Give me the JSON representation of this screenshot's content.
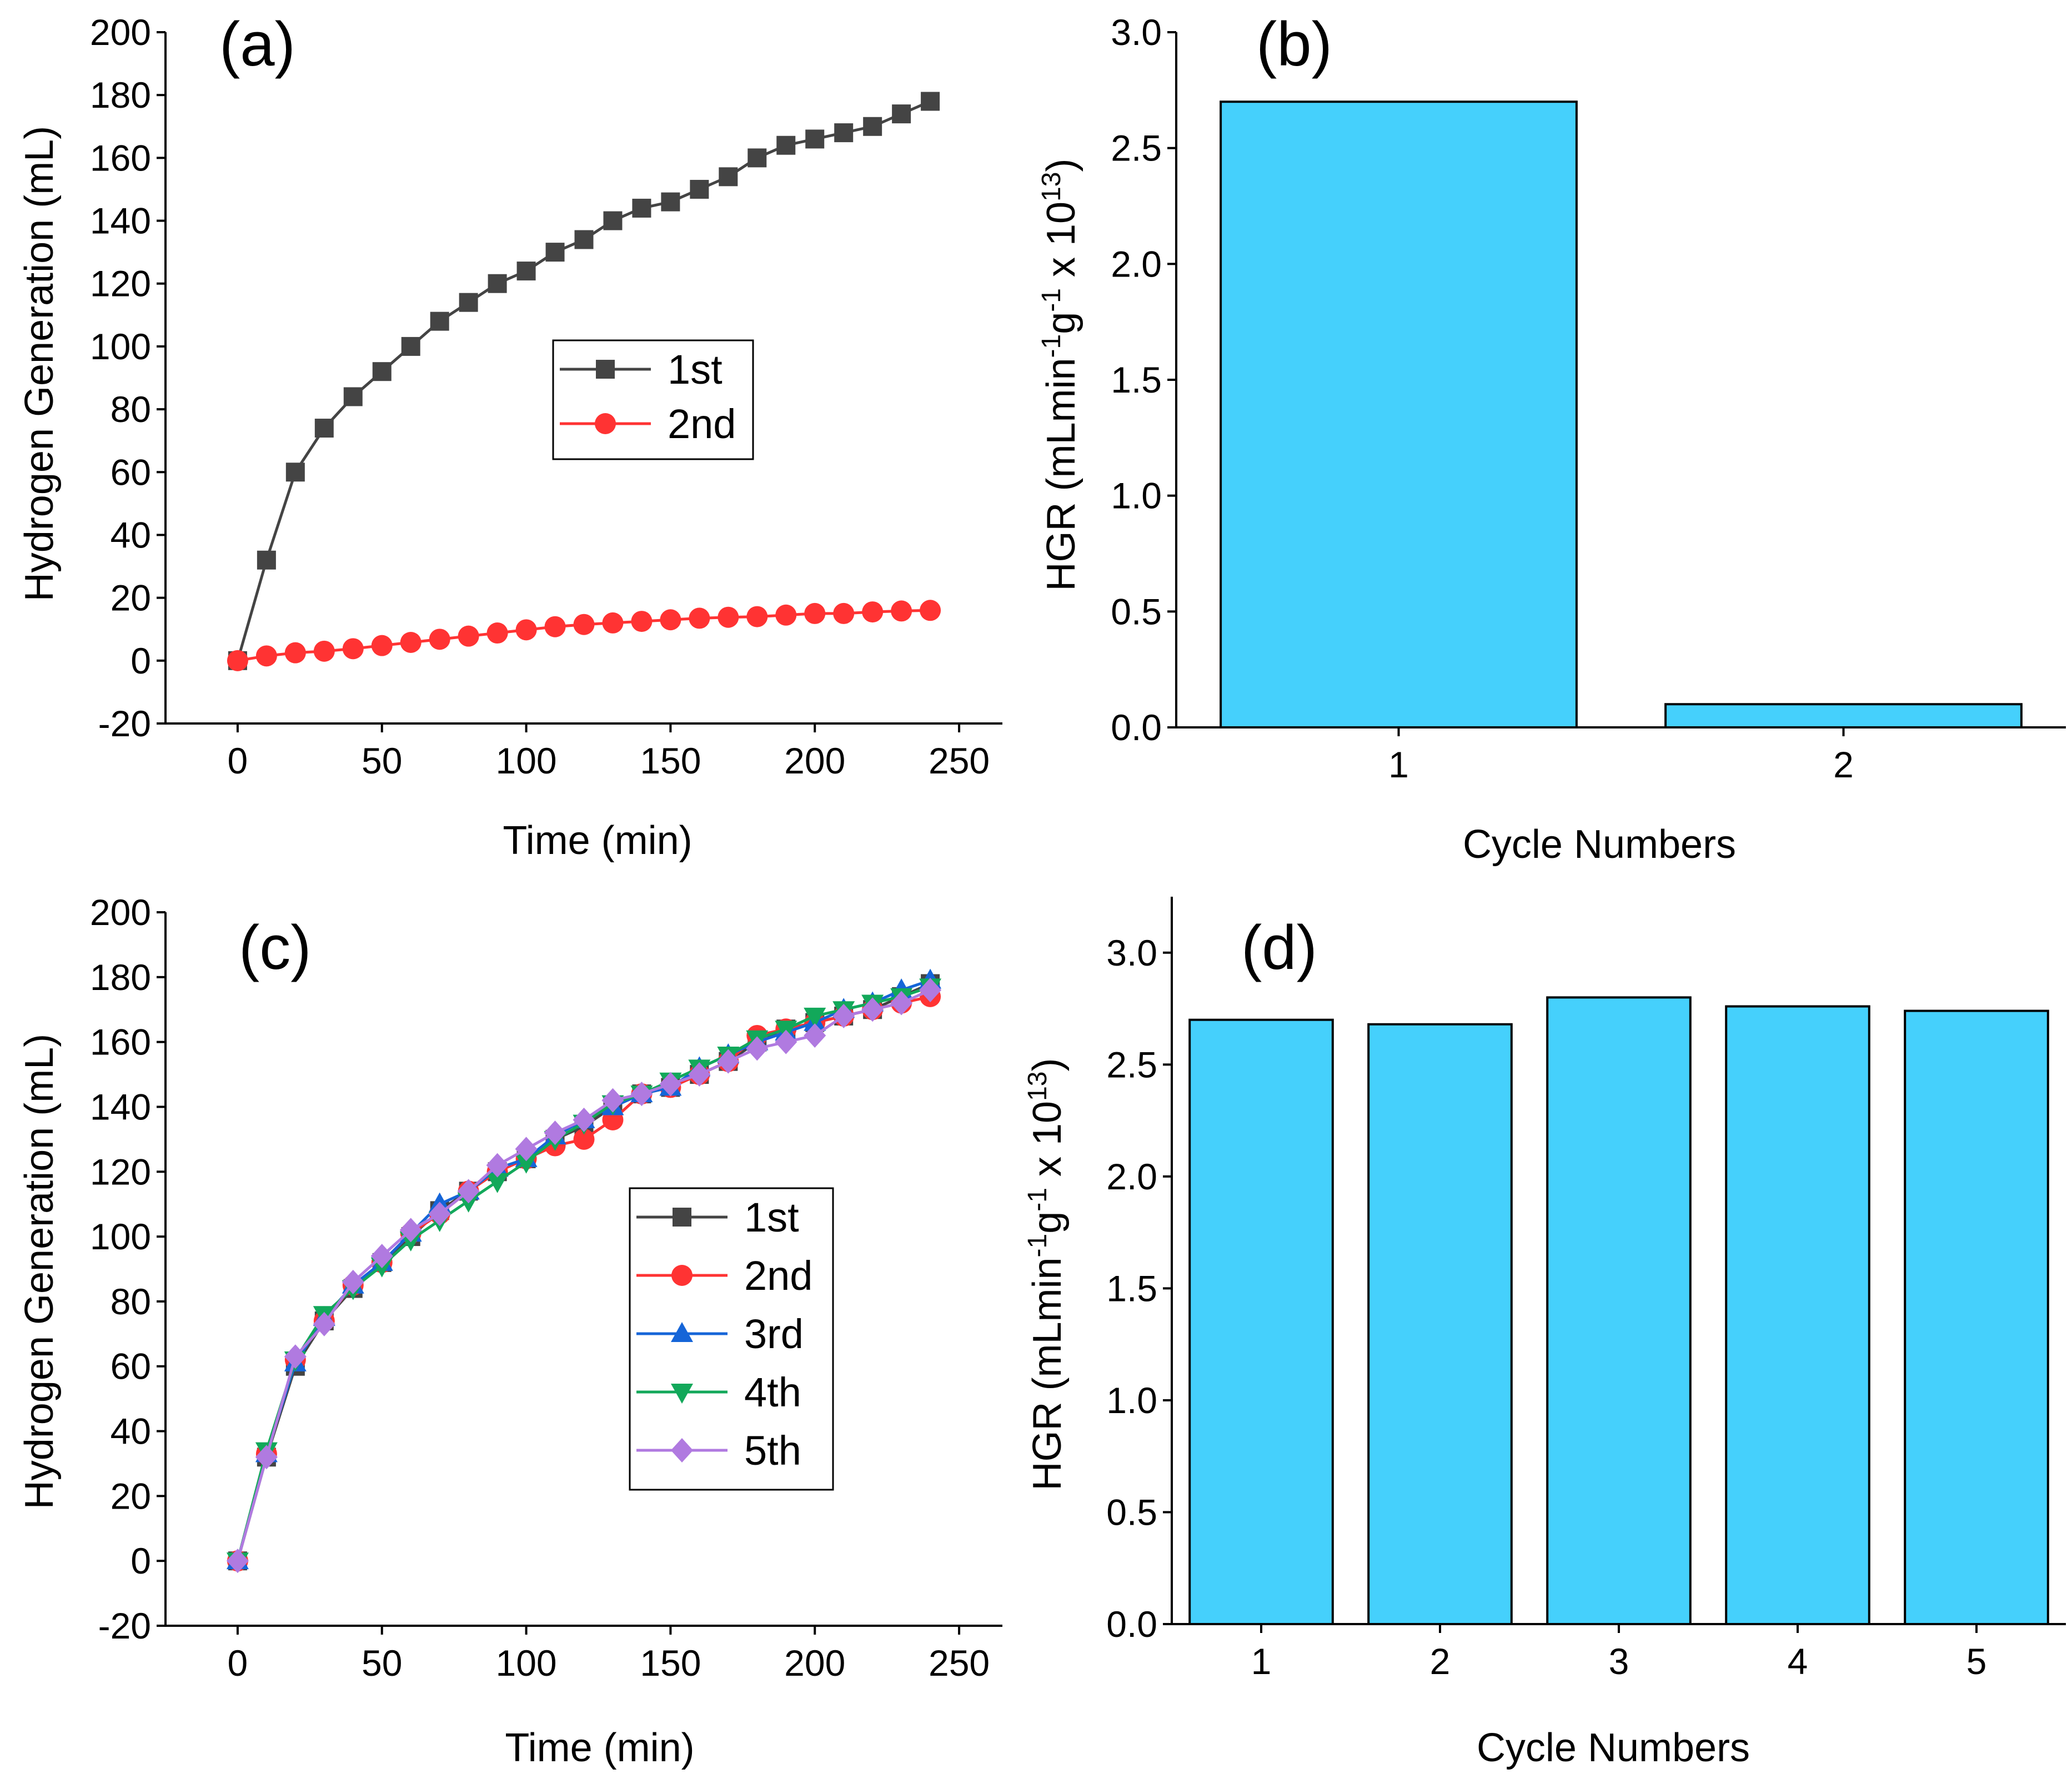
{
  "chart_data": [
    {
      "id": "a",
      "type": "line",
      "panel_label": "(a)",
      "xlabel": "Time (min)",
      "ylabel": "Hydrogen Generation (mL)",
      "xlim": [
        -25,
        265
      ],
      "ylim": [
        -20,
        200
      ],
      "xticks": [
        0,
        50,
        100,
        150,
        200,
        250
      ],
      "yticks": [
        -20,
        0,
        20,
        40,
        60,
        80,
        100,
        120,
        140,
        160,
        180,
        200
      ],
      "legend_position": "center",
      "series": [
        {
          "name": "1st",
          "color": "#444444",
          "marker": "square",
          "x": [
            0,
            10,
            20,
            30,
            40,
            50,
            60,
            70,
            80,
            90,
            100,
            110,
            120,
            130,
            140,
            150,
            160,
            170,
            180,
            190,
            200,
            210,
            220,
            230,
            240
          ],
          "y": [
            0,
            32,
            60,
            74,
            84,
            92,
            100,
            108,
            114,
            120,
            124,
            130,
            134,
            140,
            144,
            146,
            150,
            154,
            160,
            164,
            166,
            168,
            170,
            174,
            178
          ]
        },
        {
          "name": "2nd",
          "color": "#ff3333",
          "marker": "circle",
          "x": [
            0,
            10,
            20,
            30,
            40,
            50,
            60,
            70,
            80,
            90,
            100,
            110,
            120,
            130,
            140,
            150,
            160,
            170,
            180,
            190,
            200,
            210,
            220,
            230,
            240
          ],
          "y": [
            0,
            1.5,
            2.5,
            3,
            3.8,
            4.8,
            5.8,
            6.8,
            7.8,
            8.8,
            9.8,
            10.8,
            11.5,
            12,
            12.5,
            13,
            13.5,
            13.8,
            14,
            14.5,
            15,
            15,
            15.5,
            15.8,
            16
          ]
        }
      ]
    },
    {
      "id": "b",
      "type": "bar",
      "panel_label": "(b)",
      "xlabel": "Cycle Numbers",
      "ylabel": {
        "main": "HGR (mLmin",
        "sup1": "-1",
        "mid": "g",
        "sup2": "-1",
        "tail": " x 10",
        "sup3": "13",
        "end": ")"
      },
      "categories": [
        "1",
        "2"
      ],
      "values": [
        2.7,
        0.1
      ],
      "ylim": [
        0,
        3.0
      ],
      "yticks": [
        "0.0",
        "0.5",
        "1.0",
        "1.5",
        "2.0",
        "2.5",
        "3.0"
      ],
      "bar_color": "#45d0fc"
    },
    {
      "id": "c",
      "type": "line",
      "panel_label": "(c)",
      "xlabel": "Time (min)",
      "ylabel": "Hydrogen Generation (mL)",
      "xlim": [
        -25,
        265
      ],
      "ylim": [
        -20,
        200
      ],
      "xticks": [
        0,
        50,
        100,
        150,
        200,
        250
      ],
      "yticks": [
        -20,
        0,
        20,
        40,
        60,
        80,
        100,
        120,
        140,
        160,
        180,
        200
      ],
      "legend_position": "center-right",
      "series": [
        {
          "name": "1st",
          "color": "#444444",
          "marker": "square",
          "x": [
            0,
            10,
            20,
            30,
            40,
            50,
            60,
            70,
            80,
            90,
            100,
            110,
            120,
            130,
            140,
            150,
            160,
            170,
            180,
            190,
            200,
            210,
            220,
            230,
            240
          ],
          "y": [
            0,
            32,
            60,
            74,
            84,
            92,
            100,
            108,
            114,
            120,
            124,
            130,
            134,
            140,
            144,
            146,
            150,
            154,
            160,
            164,
            166,
            168,
            170,
            174,
            178
          ]
        },
        {
          "name": "2nd",
          "color": "#ff3333",
          "marker": "circle",
          "x": [
            0,
            10,
            20,
            30,
            40,
            50,
            60,
            70,
            80,
            90,
            100,
            110,
            120,
            130,
            140,
            150,
            160,
            170,
            180,
            190,
            200,
            210,
            220,
            230,
            240
          ],
          "y": [
            0,
            33,
            62,
            74,
            85,
            92,
            101,
            107,
            114,
            120,
            124,
            128,
            130,
            136,
            144,
            146,
            150,
            154,
            162,
            164,
            166,
            168,
            170,
            172,
            174
          ]
        },
        {
          "name": "3rd",
          "color": "#1565d8",
          "marker": "triangle-up",
          "x": [
            0,
            10,
            20,
            30,
            40,
            50,
            60,
            70,
            80,
            90,
            100,
            110,
            120,
            130,
            140,
            150,
            160,
            170,
            180,
            190,
            200,
            210,
            220,
            230,
            240
          ],
          "y": [
            0,
            33,
            61,
            75,
            85,
            92,
            101,
            110,
            114,
            121,
            124,
            131,
            136,
            140,
            144,
            146,
            152,
            156,
            160,
            163,
            166,
            170,
            172,
            176,
            179
          ]
        },
        {
          "name": "4th",
          "color": "#12a85a",
          "marker": "triangle-down",
          "x": [
            0,
            10,
            20,
            30,
            40,
            50,
            60,
            70,
            80,
            90,
            100,
            110,
            120,
            130,
            140,
            150,
            160,
            170,
            180,
            190,
            200,
            210,
            220,
            230,
            240
          ],
          "y": [
            0,
            34,
            62,
            76,
            84,
            91,
            99,
            105,
            111,
            117,
            123,
            130,
            135,
            141,
            144,
            148,
            152,
            156,
            161,
            164,
            168,
            170,
            172,
            174,
            177
          ]
        },
        {
          "name": "5th",
          "color": "#b07ae0",
          "marker": "diamond",
          "x": [
            0,
            10,
            20,
            30,
            40,
            50,
            60,
            70,
            80,
            90,
            100,
            110,
            120,
            130,
            140,
            150,
            160,
            170,
            180,
            190,
            200,
            210,
            220,
            230,
            240
          ],
          "y": [
            0,
            32,
            63,
            73,
            86,
            94,
            102,
            107,
            114,
            122,
            127,
            132,
            136,
            142,
            144,
            147,
            150,
            154,
            158,
            160,
            162,
            168,
            170,
            172,
            176
          ]
        }
      ]
    },
    {
      "id": "d",
      "type": "bar",
      "panel_label": "(d)",
      "xlabel": "Cycle Numbers",
      "ylabel": {
        "main": "HGR (mLmin",
        "sup1": "-1",
        "mid": "g",
        "sup2": "-1",
        "tail": " x 10",
        "sup3": "13",
        "end": ")"
      },
      "categories": [
        "1",
        "2",
        "3",
        "4",
        "5"
      ],
      "values": [
        2.7,
        2.68,
        2.8,
        2.76,
        2.74
      ],
      "ylim": [
        0,
        3.25
      ],
      "yticks": [
        "0.0",
        "0.5",
        "1.0",
        "1.5",
        "2.0",
        "2.5",
        "3.0"
      ],
      "bar_color": "#45d0fc"
    }
  ]
}
